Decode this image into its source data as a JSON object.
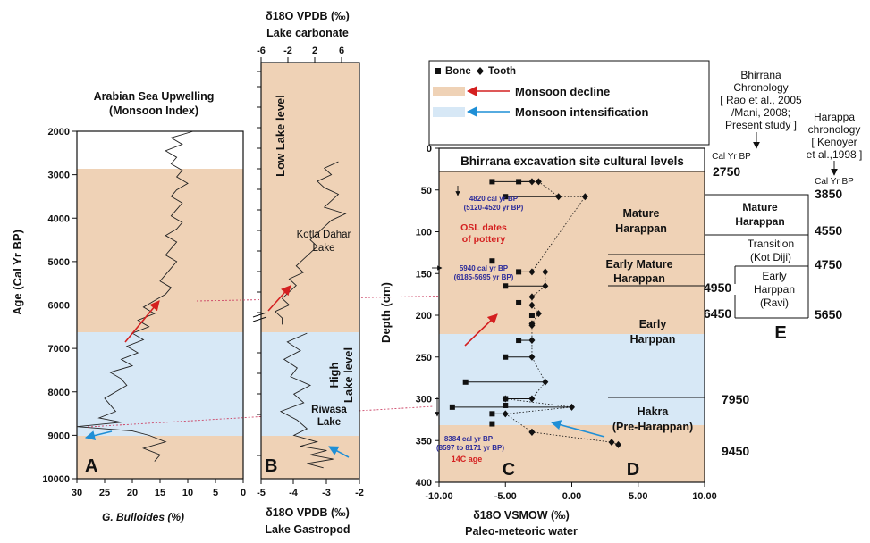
{
  "colors": {
    "decline": "#efd2b6",
    "intensification": "#d7e8f6",
    "decline_arrow": "#d42020",
    "intensification_arrow": "#1f8fd6",
    "osl_text": "#d42020",
    "date_text": "#2a2a9a",
    "connector": "#cc4466"
  },
  "panel_a": {
    "title_line1": "Arabian Sea Upwelling",
    "title_line2": "(Monsoon Index)",
    "y_label": "Age (Cal  Yr  BP)",
    "x_label": "G. Bulloides (%)",
    "letter": "A",
    "y_ticks": [
      "2000",
      "3000",
      "4000",
      "5000",
      "6000",
      "7000",
      "8000",
      "9000",
      "10000"
    ],
    "x_ticks": [
      "30",
      "25",
      "20",
      "15",
      "10",
      "5",
      "0"
    ]
  },
  "panel_b": {
    "top_title_line1": "δ18O VPDB (‰)",
    "top_title_line2": "Lake carbonate",
    "top_ticks": [
      "-6",
      "-2",
      "2",
      "6"
    ],
    "bottom_title_line1": "δ18O VPDB (‰)",
    "bottom_title_line2": "Lake Gastropod",
    "bottom_ticks": [
      "-5",
      "-4",
      "-3",
      "-2"
    ],
    "low_lake": "Low  Lake level",
    "high_lake_1": "High",
    "high_lake_2": "Lake level",
    "kotla_1": "Kotla Dahar",
    "kotla_2": "Lake",
    "riwasa_1": "Riwasa",
    "riwasa_2": "Lake",
    "letter": "B"
  },
  "legend": {
    "bone": "Bone",
    "tooth": "Tooth",
    "decline": "Monsoon decline",
    "intensification": "Monsoon intensification"
  },
  "panel_c": {
    "header": "Bhirrana excavation site cultural levels",
    "y_label": "Depth (cm)",
    "x_label_1": "δ18O VSMOW (‰)",
    "x_label_2": "Paleo-meteoric water",
    "y_ticks": [
      "0",
      "50",
      "100",
      "150",
      "200",
      "250",
      "300",
      "350",
      "400"
    ],
    "x_ticks": [
      "-10.00",
      "-5.00",
      "0.00",
      "5.00",
      "10.00"
    ],
    "date1_a": "4820 cal yr BP",
    "date1_b": "(5120-4520 yr BP)",
    "osl_1": "OSL dates",
    "osl_2": "of pottery",
    "date2_a": "5940 cal yr BP",
    "date2_b": "(6185-5695 yr BP)",
    "date3_a": "8384 cal yr BP",
    "date3_b": "(8597 to 8171 yr BP)",
    "c14": "14C age",
    "letter_c": "C",
    "letter_d": "D"
  },
  "cultural_levels": {
    "mature_1": "Mature",
    "mature_2": "Harappan",
    "early_mature_1": "Early  Mature",
    "early_mature_2": "Harappan",
    "early_1": "Early",
    "early_2": "Harppan",
    "hakra_1": "Hakra",
    "hakra_2": "(Pre-Harappan)"
  },
  "bhirrana_chronology": {
    "title_1": "Bhirrana",
    "title_2": "Chronology",
    "title_3": "[ Rao et al., 2005",
    "title_4": "/Mani, 2008;",
    "title_5": "Present study ]",
    "unit": "Cal Yr BP",
    "dates": [
      "2750",
      "4950",
      "6450",
      "7950",
      "9450"
    ]
  },
  "harappa_chronology": {
    "title_1": "Harappa",
    "title_2": "chronology",
    "title_3": "[ Kenoyer",
    "title_4": "et al.,1998 ]",
    "unit": "Cal Yr BP",
    "dates": [
      "3850",
      "4550",
      "4750",
      "5650"
    ],
    "mature_1": "Mature",
    "mature_2": "Harappan",
    "transition_1": "Transition",
    "transition_2": "(Kot Diji)",
    "early_1": "Early",
    "early_2": "Harppan",
    "early_3": "(Ravi)",
    "letter": "E"
  },
  "chart_data": [
    {
      "type": "line",
      "panel": "A",
      "title": "Arabian Sea Upwelling (Monsoon Index)",
      "xlabel": "G. Bulloides (%)",
      "ylabel": "Age (Cal  Yr  BP)",
      "xlim": [
        30,
        0
      ],
      "ylim": [
        10000,
        2000
      ],
      "x": [
        9,
        13,
        11,
        14,
        12,
        13,
        11,
        12,
        10,
        12,
        13,
        11,
        12,
        13,
        11,
        12,
        14,
        12,
        13,
        14,
        12,
        13,
        14,
        15,
        13,
        14,
        16,
        18,
        16,
        19,
        17,
        20,
        18,
        21,
        19,
        22,
        20,
        24,
        22,
        21,
        23,
        25,
        24,
        23,
        26,
        22,
        30,
        20,
        17,
        14,
        18,
        15,
        16
      ],
      "y": [
        2000,
        2150,
        2300,
        2450,
        2600,
        2750,
        2900,
        3050,
        3200,
        3350,
        3500,
        3650,
        3800,
        3950,
        4100,
        4250,
        4400,
        4550,
        4700,
        4850,
        5000,
        5150,
        5300,
        5450,
        5600,
        5750,
        5900,
        6050,
        6200,
        6350,
        6500,
        6650,
        6800,
        6950,
        7100,
        7250,
        7400,
        7550,
        7700,
        7850,
        8000,
        8150,
        8300,
        8450,
        8600,
        8700,
        8800,
        8900,
        9000,
        9150,
        9300,
        9450,
        9600
      ]
    },
    {
      "type": "line",
      "panel": "B",
      "title": "δ18O VPDB (‰) Lake carbonate / Lake Gastropod",
      "series": [
        {
          "name": "Lake carbonate",
          "xlim": [
            -6,
            8
          ],
          "x": [
            5,
            3,
            4,
            2,
            3,
            5,
            4,
            3,
            6,
            4,
            3,
            2,
            1,
            2,
            1,
            0,
            -1,
            0,
            -2,
            -1,
            -2,
            -3,
            -2,
            -4,
            -3,
            -3
          ],
          "y": [
            2700,
            2850,
            3000,
            3150,
            3300,
            3450,
            3600,
            3750,
            3900,
            4050,
            4200,
            4350,
            4500,
            4650,
            4800,
            4950,
            5100,
            5250,
            5400,
            5550,
            5700,
            5850,
            6000,
            6150,
            6300,
            6450
          ]
        },
        {
          "name": "Lake Gastropod",
          "xlim": [
            -5,
            -2
          ],
          "x": [
            -3.6,
            -4.2,
            -3.8,
            -4.3,
            -3.9,
            -4.1,
            -3.5,
            -4.0,
            -3.7,
            -4.4,
            -3.9,
            -3.6,
            -4.0,
            -3.3,
            -3.8,
            -3.0,
            -3.5,
            -2.8,
            -3.6,
            -3.1
          ],
          "y": [
            6650,
            6850,
            7050,
            7250,
            7450,
            7650,
            7850,
            8050,
            8250,
            8450,
            8650,
            8850,
            9000,
            9150,
            9250,
            9350,
            9450,
            9550,
            9650,
            9750
          ]
        }
      ]
    },
    {
      "type": "scatter",
      "panel": "C",
      "xlabel": "δ18O VSMOW (‰) Paleo-meteoric water",
      "ylabel": "Depth (cm)",
      "xlim": [
        -10,
        10
      ],
      "ylim": [
        400,
        0
      ],
      "series": [
        {
          "name": "Bone",
          "x": [
            -6,
            -4,
            -5,
            -6,
            -4,
            -5,
            -4,
            -3,
            -4,
            -5,
            -8,
            -5,
            -5,
            -9,
            -6,
            -6
          ],
          "y": [
            40,
            40,
            58,
            135,
            148,
            165,
            185,
            200,
            230,
            250,
            280,
            300,
            308,
            310,
            318,
            330
          ]
        },
        {
          "name": "Tooth",
          "x": [
            -3,
            -2.5,
            -1,
            1,
            -3,
            -2,
            -2,
            -3,
            -3,
            -2.5,
            -3,
            -3,
            -3,
            -3,
            -2,
            -3,
            -5,
            0,
            -5,
            -3,
            -3,
            3,
            3.5
          ],
          "y": [
            40,
            40,
            58,
            58,
            148,
            148,
            165,
            178,
            188,
            198,
            210,
            212,
            230,
            250,
            280,
            300,
            300,
            310,
            318,
            340,
            340,
            352,
            355
          ]
        }
      ]
    }
  ]
}
